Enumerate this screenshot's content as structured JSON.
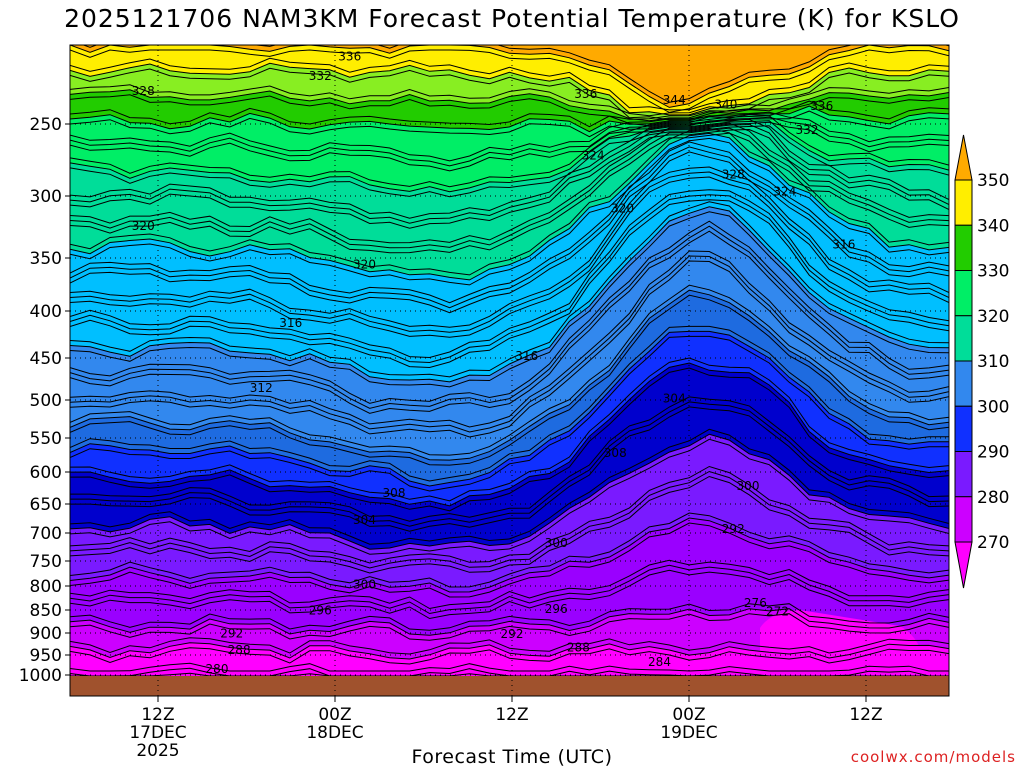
{
  "header": {
    "title": "2025121706 NAM3KM Forecast Potential Temperature (K) for KSLO"
  },
  "footer": {
    "credit": "coolwx.com/models"
  },
  "colors": {
    "band_270": "#ff00ff",
    "band_280": "#cc00ff",
    "band_280b": "#9a00ff",
    "band_290": "#7a1aff",
    "band_290b": "#0000cd",
    "band_300": "#1030ff",
    "band_300b": "#1e6be0",
    "band_310": "#3288ee",
    "band_310b": "#00bfff",
    "band_320": "#00dd99",
    "band_330": "#00ee66",
    "band_340": "#22cc00",
    "band_340b": "#88ee22",
    "band_350": "#ffee00",
    "band_350b": "#ffaa00",
    "ground": "#a0522d"
  },
  "chart_data": {
    "type": "heatmap",
    "title": "2025121706 NAM3KM Forecast Potential Temperature (K) for KSLO",
    "xlabel": "Forecast Time (UTC)",
    "ylabel": "",
    "y_axis": {
      "scale": "log-pressure",
      "ticks": [
        250,
        300,
        350,
        400,
        450,
        500,
        550,
        600,
        650,
        700,
        750,
        800,
        850,
        900,
        950,
        1000
      ],
      "range": [
        200,
        1010
      ]
    },
    "x_axis": {
      "ticks": [
        {
          "label": "12Z",
          "sub": "17DEC",
          "sub2": "2025",
          "hour": 6
        },
        {
          "label": "00Z",
          "sub": "18DEC",
          "sub2": "",
          "hour": 18
        },
        {
          "label": "12Z",
          "sub": "",
          "sub2": "",
          "hour": 30
        },
        {
          "label": "00Z",
          "sub": "19DEC",
          "sub2": "",
          "hour": 42
        },
        {
          "label": "12Z",
          "sub": "",
          "sub2": "",
          "hour": 54
        }
      ],
      "range_hours": [
        0,
        60
      ]
    },
    "colorbar": {
      "labels": [
        350,
        340,
        330,
        320,
        310,
        300,
        290,
        280,
        270
      ]
    },
    "contour_labels": [
      {
        "text": "336",
        "hour": 19.0,
        "p": 205
      },
      {
        "text": "332",
        "hour": 17.0,
        "p": 218
      },
      {
        "text": "328",
        "hour": 5.0,
        "p": 228
      },
      {
        "text": "336",
        "hour": 35.0,
        "p": 230
      },
      {
        "text": "344",
        "hour": 41.0,
        "p": 234
      },
      {
        "text": "340",
        "hour": 44.5,
        "p": 237
      },
      {
        "text": "336",
        "hour": 51.0,
        "p": 238
      },
      {
        "text": "332",
        "hour": 50.0,
        "p": 254
      },
      {
        "text": "324",
        "hour": 35.5,
        "p": 272
      },
      {
        "text": "328",
        "hour": 45.0,
        "p": 285
      },
      {
        "text": "324",
        "hour": 48.5,
        "p": 297
      },
      {
        "text": "320",
        "hour": 37.5,
        "p": 310
      },
      {
        "text": "320",
        "hour": 5.0,
        "p": 324
      },
      {
        "text": "316",
        "hour": 52.5,
        "p": 339
      },
      {
        "text": "320",
        "hour": 20.0,
        "p": 356
      },
      {
        "text": "316",
        "hour": 15.0,
        "p": 413
      },
      {
        "text": "316",
        "hour": 31.0,
        "p": 448
      },
      {
        "text": "312",
        "hour": 13.0,
        "p": 486
      },
      {
        "text": "304",
        "hour": 41.0,
        "p": 498
      },
      {
        "text": "308",
        "hour": 37.0,
        "p": 572
      },
      {
        "text": "308",
        "hour": 22.0,
        "p": 633
      },
      {
        "text": "300",
        "hour": 46.0,
        "p": 622
      },
      {
        "text": "304",
        "hour": 20.0,
        "p": 678
      },
      {
        "text": "292",
        "hour": 45.0,
        "p": 693
      },
      {
        "text": "300",
        "hour": 33.0,
        "p": 718
      },
      {
        "text": "300",
        "hour": 20.0,
        "p": 797
      },
      {
        "text": "296",
        "hour": 17.0,
        "p": 851
      },
      {
        "text": "296",
        "hour": 33.0,
        "p": 848
      },
      {
        "text": "276",
        "hour": 46.5,
        "p": 835
      },
      {
        "text": "272",
        "hour": 48.0,
        "p": 853
      },
      {
        "text": "292",
        "hour": 11.0,
        "p": 901
      },
      {
        "text": "292",
        "hour": 30.0,
        "p": 902
      },
      {
        "text": "288",
        "hour": 11.5,
        "p": 939
      },
      {
        "text": "288",
        "hour": 34.5,
        "p": 933
      },
      {
        "text": "284",
        "hour": 40.0,
        "p": 967
      },
      {
        "text": "280",
        "hour": 10.0,
        "p": 985
      }
    ]
  }
}
